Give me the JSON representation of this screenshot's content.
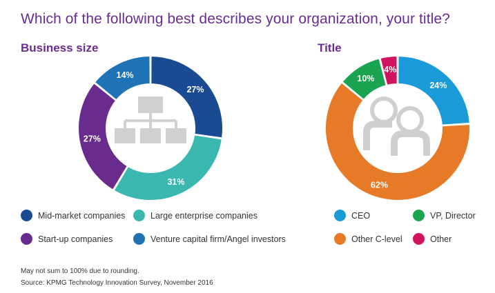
{
  "header": {
    "title": "Which of the following best describes your organization, your title?"
  },
  "chart_data": [
    {
      "type": "pie",
      "title": "Business size",
      "series": [
        {
          "name": "Mid-market companies",
          "label": "27%",
          "value": 27,
          "color": "#1a4a91"
        },
        {
          "name": "Large enterprise companies",
          "label": "31%",
          "value": 31,
          "color": "#3ab8b0"
        },
        {
          "name": "Start-up companies",
          "label": "27%",
          "value": 27,
          "color": "#6a2b8f"
        },
        {
          "name": "Venture capital firm/Angel investors",
          "label": "14%",
          "value": 14,
          "color": "#1e72b6"
        }
      ],
      "center_icon": "org-chart-icon"
    },
    {
      "type": "pie",
      "title": "Title",
      "series": [
        {
          "name": "CEO",
          "label": "24%",
          "value": 24,
          "color": "#1a9ad9"
        },
        {
          "name": "Other C-level",
          "label": "62%",
          "value": 62,
          "color": "#e67a27"
        },
        {
          "name": "VP, Director",
          "label": "10%",
          "value": 10,
          "color": "#1aa351"
        },
        {
          "name": "Other",
          "label": "4%",
          "value": 4,
          "color": "#d0145e"
        }
      ],
      "center_icon": "people-icon"
    }
  ],
  "footnote": {
    "note": "May not sum to 100% due to rounding.",
    "source": "Source: KPMG Technology Innovation Survey, November 2016"
  }
}
